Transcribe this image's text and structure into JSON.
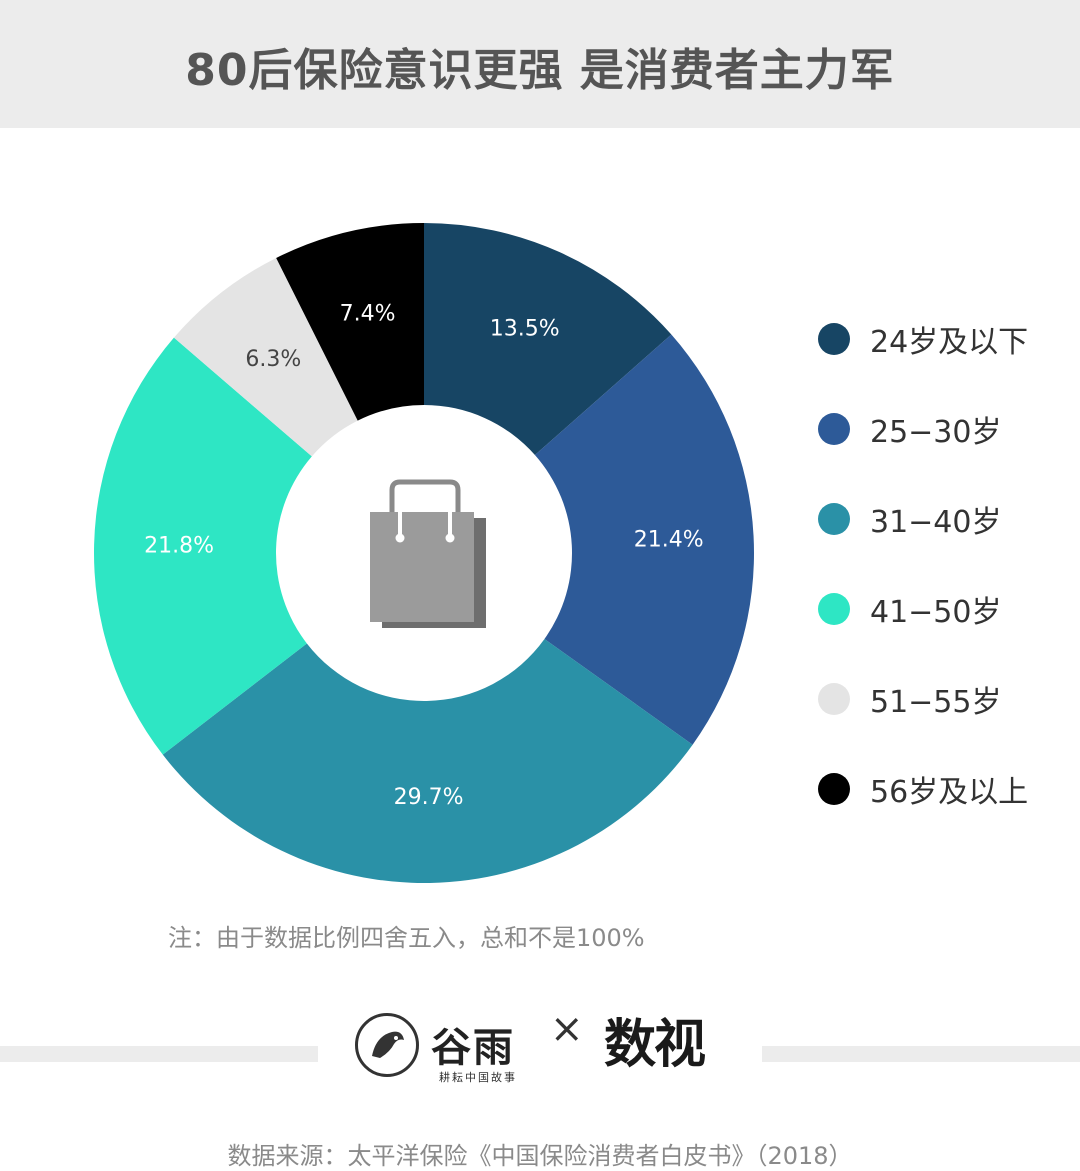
{
  "title": "80后保险意识更强 是消费者主力军",
  "chart_data": {
    "type": "pie",
    "donut": true,
    "categories": [
      "24岁及以下",
      "25-30岁",
      "31-40岁",
      "41-50岁",
      "51-55岁",
      "56岁及以上"
    ],
    "values": [
      13.5,
      21.4,
      29.7,
      21.8,
      6.3,
      7.4
    ],
    "data_labels": [
      "13.5%",
      "21.4%",
      "29.7%",
      "21.8%",
      "6.3%",
      "7.4%"
    ],
    "colors": [
      "#174564",
      "#2d5a98",
      "#2a91a7",
      "#2ee6c4",
      "#e4e4e4",
      "#000000"
    ],
    "label_colors": [
      "#ffffff",
      "#ffffff",
      "#ffffff",
      "#ffffff",
      "#444444",
      "#ffffff"
    ],
    "legend_position": "right",
    "center_icon": "shopping-bag-icon"
  },
  "legend": [
    {
      "label": "24岁及以下",
      "color": "#174564"
    },
    {
      "label": "25−30岁",
      "color": "#2d5a98"
    },
    {
      "label": "31−40岁",
      "color": "#2a91a7"
    },
    {
      "label": "41−50岁",
      "color": "#2ee6c4"
    },
    {
      "label": "51−55岁",
      "color": "#e4e4e4"
    },
    {
      "label": "56岁及以上",
      "color": "#000000"
    }
  ],
  "note": "注：由于数据比例四舍五入，总和不是100%",
  "logos": {
    "guyu_name": "谷雨",
    "guyu_tagline": "耕耘中国故事",
    "separator": "×",
    "shushi_name": "数视"
  },
  "source": "数据来源：太平洋保险《中国保险消费者白皮书》（2018）"
}
